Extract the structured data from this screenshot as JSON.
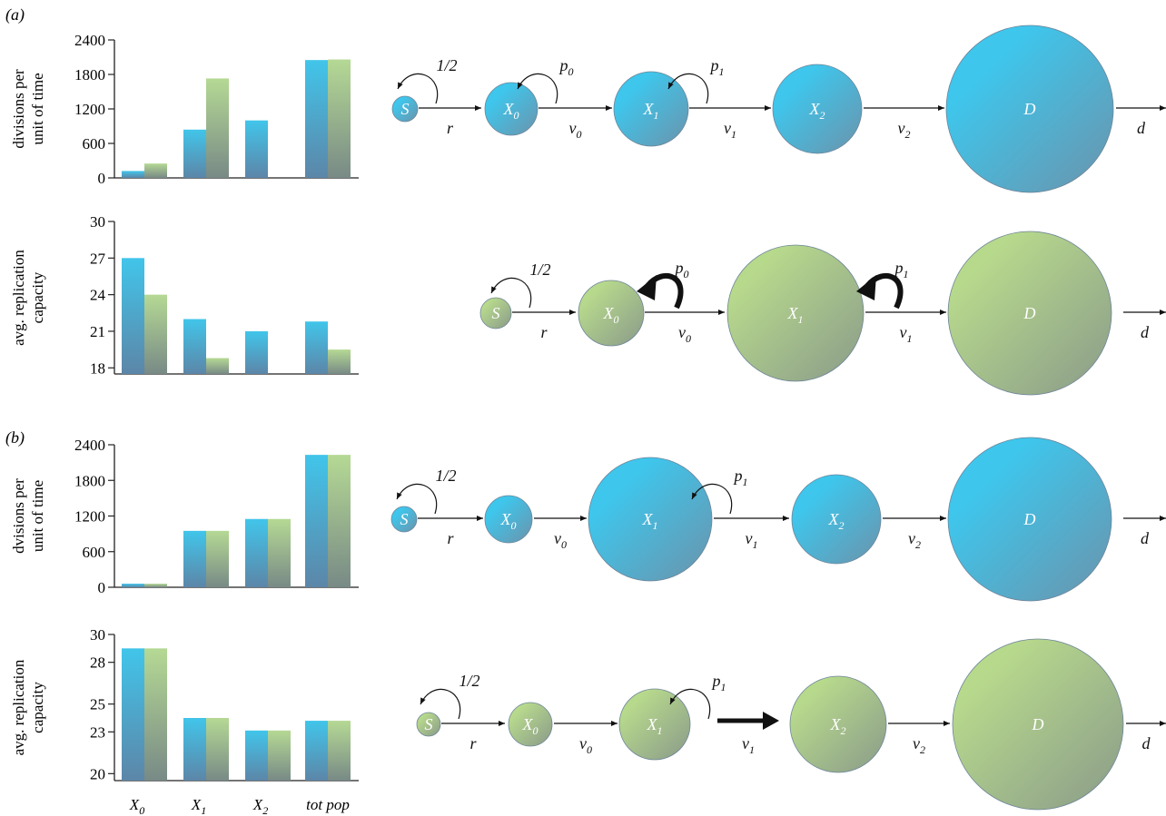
{
  "panel_labels": [
    "(a)",
    "(b)"
  ],
  "colors": {
    "blue_top": "#41c5ea",
    "blue_bottom": "#5c86a8",
    "green_top": "#b5d994",
    "green_bottom": "#788a86",
    "node_blue_light": "#3ec6ec",
    "node_blue_dark": "#6b93ab",
    "node_green_light": "#b7d98c",
    "node_green_dark": "#8a9a8a"
  },
  "chart_data": [
    {
      "type": "bar",
      "panel": "(a)",
      "ylabel_lines": [
        "divisions per",
        "unit of time"
      ],
      "ylim": [
        0,
        2400
      ],
      "yticks": [
        0,
        600,
        1200,
        1800,
        2400
      ],
      "categories": [
        "X0",
        "X1",
        "X2",
        "tot pop"
      ],
      "series": [
        {
          "color": "blue",
          "values": [
            120,
            840,
            1000,
            2050
          ]
        },
        {
          "color": "green",
          "values": [
            250,
            1730,
            null,
            2060
          ]
        }
      ]
    },
    {
      "type": "bar",
      "panel": "(a)",
      "ylabel_lines": [
        "avg. replication",
        "capacity"
      ],
      "ylim": [
        17.5,
        30
      ],
      "yticks": [
        18,
        21,
        24,
        27,
        30
      ],
      "categories": [
        "X0",
        "X1",
        "X2",
        "tot pop"
      ],
      "series": [
        {
          "color": "blue",
          "values": [
            27.0,
            22.0,
            21.0,
            21.8
          ]
        },
        {
          "color": "green",
          "values": [
            24.0,
            18.8,
            null,
            19.5
          ]
        }
      ]
    },
    {
      "type": "bar",
      "panel": "(b)",
      "ylabel_lines": [
        "dvisions per",
        "unit of time"
      ],
      "ylim": [
        0,
        2400
      ],
      "yticks": [
        0,
        600,
        1200,
        1800,
        2400
      ],
      "categories": [
        "X0",
        "X1",
        "X2",
        "tot pop"
      ],
      "series": [
        {
          "color": "blue",
          "values": [
            60,
            950,
            1150,
            2230
          ]
        },
        {
          "color": "green",
          "values": [
            60,
            950,
            1150,
            2230
          ]
        }
      ]
    },
    {
      "type": "bar",
      "panel": "(b)",
      "ylabel_lines": [
        "avg. replication",
        "capacity"
      ],
      "ylim": [
        19.5,
        30
      ],
      "yticks": [
        20,
        23,
        25,
        28,
        30
      ],
      "categories": [
        "X0",
        "X1",
        "X2",
        "tot pop"
      ],
      "series": [
        {
          "color": "blue",
          "values": [
            29.0,
            24.0,
            23.1,
            23.8
          ]
        },
        {
          "color": "green",
          "values": [
            29.0,
            24.0,
            23.1,
            23.8
          ]
        }
      ]
    }
  ],
  "xcategory_labels": [
    {
      "base": "X",
      "sub": "0"
    },
    {
      "base": "X",
      "sub": "1"
    },
    {
      "base": "X",
      "sub": "2"
    },
    {
      "base": "tot pop",
      "sub": ""
    }
  ],
  "diagrams": [
    {
      "color": "blue",
      "nodes": [
        {
          "base": "S",
          "sub": "",
          "size": "xs"
        },
        {
          "base": "X",
          "sub": "0",
          "size": "sm"
        },
        {
          "base": "X",
          "sub": "1",
          "size": "md"
        },
        {
          "base": "X",
          "sub": "2",
          "size": "lg"
        },
        {
          "base": "D",
          "sub": "",
          "size": "xl"
        }
      ],
      "self_loops": [
        {
          "node": 0,
          "base": "1/2",
          "sub": "",
          "bold": false
        },
        {
          "node": 1,
          "base": "p",
          "sub": "0",
          "bold": false
        },
        {
          "node": 2,
          "base": "p",
          "sub": "1",
          "bold": false
        }
      ],
      "transitions": [
        {
          "base": "r",
          "sub": "",
          "bold": false
        },
        {
          "base": "v",
          "sub": "0",
          "bold": false
        },
        {
          "base": "v",
          "sub": "1",
          "bold": false
        },
        {
          "base": "v",
          "sub": "2",
          "bold": false
        },
        {
          "base": "d",
          "sub": "",
          "bold": false
        }
      ]
    },
    {
      "color": "green",
      "nodes": [
        {
          "base": "S",
          "sub": "",
          "size": "xs"
        },
        {
          "base": "X",
          "sub": "0",
          "size": "sm"
        },
        {
          "base": "X",
          "sub": "1",
          "size": "xl"
        },
        {
          "base": "D",
          "sub": "",
          "size": "xl"
        }
      ],
      "self_loops": [
        {
          "node": 0,
          "base": "1/2",
          "sub": "",
          "bold": false
        },
        {
          "node": 1,
          "base": "p",
          "sub": "0",
          "bold": true
        },
        {
          "node": 2,
          "base": "p",
          "sub": "1",
          "bold": true
        }
      ],
      "transitions": [
        {
          "base": "r",
          "sub": "",
          "bold": false
        },
        {
          "base": "v",
          "sub": "0",
          "bold": false
        },
        {
          "base": "v",
          "sub": "1",
          "bold": false
        },
        {
          "base": "d",
          "sub": "",
          "bold": false
        }
      ]
    },
    {
      "color": "blue",
      "nodes": [
        {
          "base": "S",
          "sub": "",
          "size": "xs"
        },
        {
          "base": "X",
          "sub": "0",
          "size": "sm"
        },
        {
          "base": "X",
          "sub": "1",
          "size": "xl"
        },
        {
          "base": "X",
          "sub": "2",
          "size": "lg"
        },
        {
          "base": "D",
          "sub": "",
          "size": "xl"
        }
      ],
      "self_loops": [
        {
          "node": 0,
          "base": "1/2",
          "sub": "",
          "bold": false
        },
        {
          "node": 2,
          "base": "p",
          "sub": "1",
          "bold": false
        }
      ],
      "transitions": [
        {
          "base": "r",
          "sub": "",
          "bold": false
        },
        {
          "base": "v",
          "sub": "0",
          "bold": false
        },
        {
          "base": "v",
          "sub": "1",
          "bold": false
        },
        {
          "base": "v",
          "sub": "2",
          "bold": false
        },
        {
          "base": "d",
          "sub": "",
          "bold": false
        }
      ]
    },
    {
      "color": "green",
      "nodes": [
        {
          "base": "S",
          "sub": "",
          "size": "xs"
        },
        {
          "base": "X",
          "sub": "0",
          "size": "sm"
        },
        {
          "base": "X",
          "sub": "1",
          "size": "md"
        },
        {
          "base": "X",
          "sub": "2",
          "size": "lg"
        },
        {
          "base": "D",
          "sub": "",
          "size": "xl"
        }
      ],
      "self_loops": [
        {
          "node": 0,
          "base": "1/2",
          "sub": "",
          "bold": false
        },
        {
          "node": 2,
          "base": "p",
          "sub": "1",
          "bold": false
        }
      ],
      "transitions": [
        {
          "base": "r",
          "sub": "",
          "bold": false
        },
        {
          "base": "v",
          "sub": "0",
          "bold": false
        },
        {
          "base": "v",
          "sub": "1",
          "bold": true
        },
        {
          "base": "v",
          "sub": "2",
          "bold": false
        },
        {
          "base": "d",
          "sub": "",
          "bold": false
        }
      ]
    }
  ]
}
